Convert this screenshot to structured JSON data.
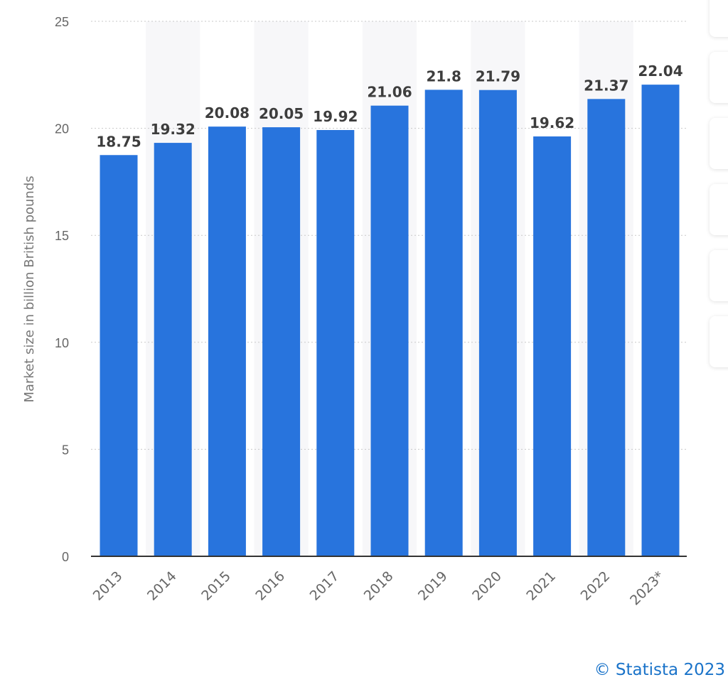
{
  "chart_data": {
    "type": "bar",
    "categories": [
      "2013",
      "2014",
      "2015",
      "2016",
      "2017",
      "2018",
      "2019",
      "2020",
      "2021",
      "2022",
      "2023*"
    ],
    "values": [
      18.75,
      19.32,
      20.08,
      20.05,
      19.92,
      21.06,
      21.8,
      21.79,
      19.62,
      21.37,
      22.04
    ],
    "value_labels": [
      "18.75",
      "19.32",
      "20.08",
      "20.05",
      "19.92",
      "21.06",
      "21.8",
      "21.79",
      "19.62",
      "21.37",
      "22.04"
    ],
    "ylabel": "Market size in billion British pounds",
    "ylim": [
      0,
      25
    ],
    "yticks": [
      0,
      5,
      10,
      15,
      20,
      25
    ],
    "grid": true,
    "bar_color": "#2874dd",
    "band_color": "#f7f7f9",
    "legend": "none"
  },
  "credit": "© Statista 2023"
}
